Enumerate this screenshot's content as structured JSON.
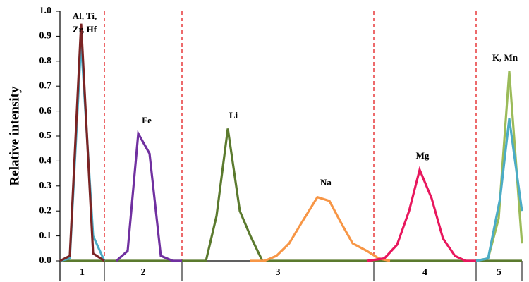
{
  "chart_data": {
    "type": "line",
    "y_label": "Relative intensity",
    "ylim": [
      0,
      1
    ],
    "yticks": [
      {
        "value": 0,
        "label": "0.0"
      },
      0.1,
      0.2,
      0.3,
      0.4,
      0.5,
      0.6,
      0.7,
      0.8,
      0.9,
      {
        "value": 1,
        "label": "1.0"
      }
    ],
    "xlim": [
      0,
      655
    ],
    "regions": [
      "1",
      "2",
      "3",
      "4",
      "5"
    ],
    "dividers": [
      63,
      173,
      445,
      590
    ],
    "divider_color": "#e31a1c",
    "annotations": [
      "Al, Ti,",
      "Zr, Hf",
      "Fe",
      "Li",
      "Na",
      "Mg",
      "K, Mn"
    ],
    "series": [
      {
        "color": "#5b7a2e",
        "x": [
          0,
          207,
          222,
          238,
          255,
          270,
          287,
          655
        ],
        "values": [
          0,
          0,
          0.18,
          0.53,
          0.2,
          0.1,
          0,
          0
        ]
      },
      {
        "color": "#f79646",
        "x": [
          270,
          290,
          307,
          325,
          342,
          365,
          382,
          399,
          415,
          435,
          452,
          468
        ],
        "values": [
          0,
          0,
          0.02,
          0.07,
          0.15,
          0.255,
          0.24,
          0.15,
          0.07,
          0.04,
          0.01,
          0
        ]
      },
      {
        "color": "#e8175d",
        "x": [
          435,
          460,
          478,
          495,
          510,
          527,
          543,
          560,
          575,
          590
        ],
        "values": [
          0,
          0.01,
          0.065,
          0.2,
          0.365,
          0.25,
          0.09,
          0.02,
          0,
          0
        ]
      },
      {
        "color": "#7030a0",
        "x": [
          80,
          96,
          111,
          127,
          143,
          160,
          173
        ],
        "values": [
          0,
          0.04,
          0.51,
          0.43,
          0.02,
          0,
          0
        ]
      },
      {
        "color": "#9bbb59",
        "x": [
          590,
          607,
          622,
          637,
          655
        ],
        "values": [
          0,
          0.01,
          0.17,
          0.76,
          0.07
        ]
      },
      {
        "color": "#4bacc6",
        "x": [
          0,
          14,
          30,
          47,
          63,
          null,
          590,
          607,
          624,
          637,
          655
        ],
        "values": [
          0,
          0.01,
          0.88,
          0.1,
          0,
          null,
          0,
          0.01,
          0.25,
          0.57,
          0.2
        ]
      },
      {
        "color": "#7b2424",
        "x": [
          0,
          14,
          30,
          47,
          63
        ],
        "values": [
          0,
          0.02,
          0.95,
          0.03,
          0
        ]
      }
    ]
  }
}
